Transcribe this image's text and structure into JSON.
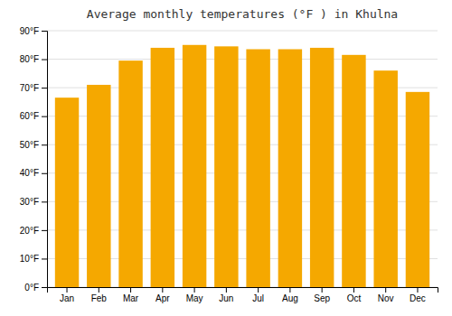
{
  "chart_data": {
    "type": "bar",
    "title": "Average monthly temperatures (°F ) in Khulna",
    "categories": [
      "Jan",
      "Feb",
      "Mar",
      "Apr",
      "May",
      "Jun",
      "Jul",
      "Aug",
      "Sep",
      "Oct",
      "Nov",
      "Dec"
    ],
    "values": [
      66.5,
      71.0,
      79.5,
      84.0,
      85.0,
      84.5,
      83.5,
      83.5,
      84.0,
      81.5,
      76.0,
      68.5
    ],
    "color": "#F5A800",
    "ylim": [
      0,
      90
    ],
    "yticks": [
      {
        "value": 0,
        "label": "0°F"
      },
      {
        "value": 10,
        "label": "10°F"
      },
      {
        "value": 20,
        "label": "20°F"
      },
      {
        "value": 30,
        "label": "30°F"
      },
      {
        "value": 40,
        "label": "40°F"
      },
      {
        "value": 50,
        "label": "50°F"
      },
      {
        "value": 60,
        "label": "60°F"
      },
      {
        "value": 70,
        "label": "70°F"
      },
      {
        "value": 80,
        "label": "80°F"
      },
      {
        "value": 90,
        "label": "90°F"
      }
    ],
    "grid": true
  }
}
